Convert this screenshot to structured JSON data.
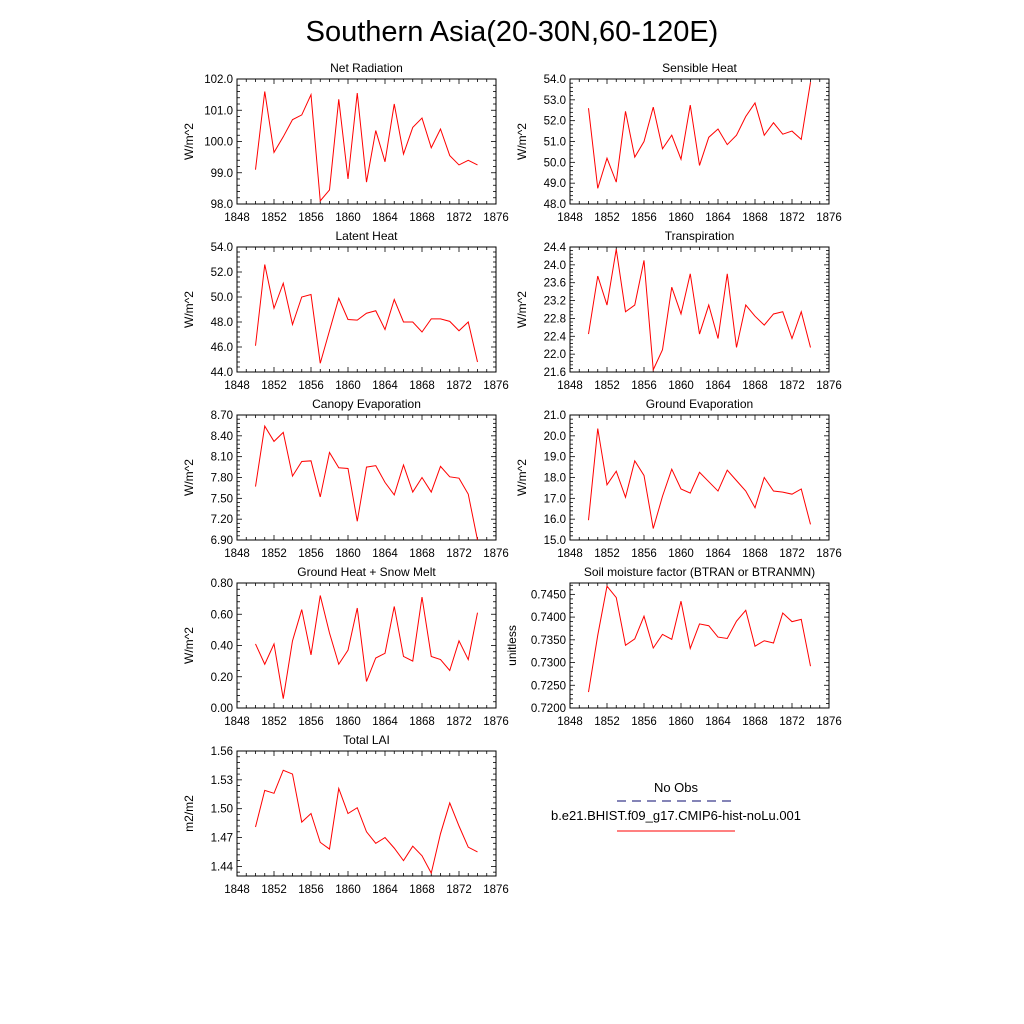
{
  "title": "Southern Asia(20-30N,60-120E)",
  "colors": {
    "model": "#ff0000",
    "obs": "#3a3a8c",
    "axis": "#000000"
  },
  "legend": {
    "obs_label": "No Obs",
    "model_label": "b.e21.BHIST.f09_g17.CMIP6-hist-noLu.001"
  },
  "chart_data": [
    {
      "type": "line",
      "title": "Net Radiation",
      "ylabel": "W/m^2",
      "xlim": [
        1848,
        1876
      ],
      "xticks": [
        "1848",
        "1852",
        "1856",
        "1860",
        "1864",
        "1868",
        "1872",
        "1876"
      ],
      "ylim": [
        98.0,
        102.0
      ],
      "yticks": [
        "98.0",
        "99.0",
        "100.0",
        "101.0",
        "102.0"
      ],
      "x": [
        1850,
        1851,
        1852,
        1853,
        1854,
        1855,
        1856,
        1857,
        1858,
        1859,
        1860,
        1861,
        1862,
        1863,
        1864,
        1865,
        1866,
        1867,
        1868,
        1869,
        1870,
        1871,
        1872,
        1873,
        1874
      ],
      "series": [
        {
          "values": [
            99.1,
            101.6,
            99.65,
            100.15,
            100.7,
            100.85,
            101.5,
            98.1,
            98.45,
            101.35,
            98.8,
            101.55,
            98.7,
            100.35,
            99.35,
            101.2,
            99.6,
            100.45,
            100.75,
            99.8,
            100.4,
            99.55,
            99.25,
            99.4,
            99.25
          ]
        }
      ]
    },
    {
      "type": "line",
      "title": "Sensible Heat",
      "ylabel": "W/m^2",
      "xlim": [
        1848,
        1876
      ],
      "xticks": [
        "1848",
        "1852",
        "1856",
        "1860",
        "1864",
        "1868",
        "1872",
        "1876"
      ],
      "ylim": [
        48.0,
        54.0
      ],
      "yticks": [
        "48.0",
        "49.0",
        "50.0",
        "51.0",
        "52.0",
        "53.0",
        "54.0"
      ],
      "x": [
        1850,
        1851,
        1852,
        1853,
        1854,
        1855,
        1856,
        1857,
        1858,
        1859,
        1860,
        1861,
        1862,
        1863,
        1864,
        1865,
        1866,
        1867,
        1868,
        1869,
        1870,
        1871,
        1872,
        1873,
        1874
      ],
      "series": [
        {
          "values": [
            52.6,
            48.75,
            50.2,
            49.05,
            52.45,
            50.25,
            51.0,
            52.65,
            50.65,
            51.3,
            50.15,
            52.75,
            49.85,
            51.2,
            51.6,
            50.85,
            51.3,
            52.2,
            52.85,
            51.3,
            51.9,
            51.35,
            51.5,
            51.1,
            53.85
          ]
        }
      ]
    },
    {
      "type": "line",
      "title": "Latent Heat",
      "ylabel": "W/m^2",
      "xlim": [
        1848,
        1876
      ],
      "xticks": [
        "1848",
        "1852",
        "1856",
        "1860",
        "1864",
        "1868",
        "1872",
        "1876"
      ],
      "ylim": [
        44.0,
        54.0
      ],
      "yticks": [
        "44.0",
        "46.0",
        "48.0",
        "50.0",
        "52.0",
        "54.0"
      ],
      "x": [
        1850,
        1851,
        1852,
        1853,
        1854,
        1855,
        1856,
        1857,
        1858,
        1859,
        1860,
        1861,
        1862,
        1863,
        1864,
        1865,
        1866,
        1867,
        1868,
        1869,
        1870,
        1871,
        1872,
        1873,
        1874
      ],
      "series": [
        {
          "values": [
            46.1,
            52.6,
            49.1,
            51.1,
            47.8,
            50.0,
            50.2,
            44.7,
            47.3,
            49.9,
            48.2,
            48.15,
            48.7,
            48.9,
            47.4,
            49.8,
            48.0,
            48.0,
            47.2,
            48.25,
            48.25,
            48.05,
            47.3,
            48.0,
            44.8
          ]
        }
      ]
    },
    {
      "type": "line",
      "title": "Transpiration",
      "ylabel": "W/m^2",
      "xlim": [
        1848,
        1876
      ],
      "xticks": [
        "1848",
        "1852",
        "1856",
        "1860",
        "1864",
        "1868",
        "1872",
        "1876"
      ],
      "ylim": [
        21.6,
        24.4
      ],
      "yticks": [
        "21.6",
        "22.0",
        "22.4",
        "22.8",
        "23.2",
        "23.6",
        "24.0",
        "24.4"
      ],
      "x": [
        1850,
        1851,
        1852,
        1853,
        1854,
        1855,
        1856,
        1857,
        1858,
        1859,
        1860,
        1861,
        1862,
        1863,
        1864,
        1865,
        1866,
        1867,
        1868,
        1869,
        1870,
        1871,
        1872,
        1873,
        1874
      ],
      "series": [
        {
          "values": [
            22.45,
            23.75,
            23.1,
            24.35,
            22.95,
            23.1,
            24.1,
            21.65,
            22.1,
            23.5,
            22.9,
            23.8,
            22.45,
            23.1,
            22.35,
            23.8,
            22.15,
            23.1,
            22.85,
            22.65,
            22.9,
            22.95,
            22.35,
            22.95,
            22.15
          ]
        }
      ]
    },
    {
      "type": "line",
      "title": "Canopy Evaporation",
      "ylabel": "W/m^2",
      "xlim": [
        1848,
        1876
      ],
      "xticks": [
        "1848",
        "1852",
        "1856",
        "1860",
        "1864",
        "1868",
        "1872",
        "1876"
      ],
      "ylim": [
        6.9,
        8.7
      ],
      "yticks": [
        "6.90",
        "7.20",
        "7.50",
        "7.80",
        "8.10",
        "8.40",
        "8.70"
      ],
      "x": [
        1850,
        1851,
        1852,
        1853,
        1854,
        1855,
        1856,
        1857,
        1858,
        1859,
        1860,
        1861,
        1862,
        1863,
        1864,
        1865,
        1866,
        1867,
        1868,
        1869,
        1870,
        1871,
        1872,
        1873,
        1874
      ],
      "series": [
        {
          "values": [
            7.67,
            8.54,
            8.32,
            8.45,
            7.82,
            8.03,
            8.04,
            7.52,
            8.16,
            7.94,
            7.93,
            7.17,
            7.95,
            7.97,
            7.73,
            7.55,
            7.98,
            7.59,
            7.8,
            7.59,
            7.96,
            7.81,
            7.79,
            7.56,
            6.9
          ]
        }
      ]
    },
    {
      "type": "line",
      "title": "Ground Evaporation",
      "ylabel": "W/m^2",
      "xlim": [
        1848,
        1876
      ],
      "xticks": [
        "1848",
        "1852",
        "1856",
        "1860",
        "1864",
        "1868",
        "1872",
        "1876"
      ],
      "ylim": [
        15.0,
        21.0
      ],
      "yticks": [
        "15.0",
        "16.0",
        "17.0",
        "18.0",
        "19.0",
        "20.0",
        "21.0"
      ],
      "x": [
        1850,
        1851,
        1852,
        1853,
        1854,
        1855,
        1856,
        1857,
        1858,
        1859,
        1860,
        1861,
        1862,
        1863,
        1864,
        1865,
        1866,
        1867,
        1868,
        1869,
        1870,
        1871,
        1872,
        1873,
        1874
      ],
      "series": [
        {
          "values": [
            15.95,
            20.35,
            17.65,
            18.3,
            17.05,
            18.8,
            18.1,
            15.55,
            17.1,
            18.4,
            17.45,
            17.25,
            18.25,
            17.8,
            17.35,
            18.35,
            17.85,
            17.35,
            16.55,
            18.0,
            17.35,
            17.3,
            17.2,
            17.45,
            15.75
          ]
        }
      ]
    },
    {
      "type": "line",
      "title": "Ground Heat + Snow Melt",
      "ylabel": "W/m^2",
      "xlim": [
        1848,
        1876
      ],
      "xticks": [
        "1848",
        "1852",
        "1856",
        "1860",
        "1864",
        "1868",
        "1872",
        "1876"
      ],
      "ylim": [
        0.0,
        0.8
      ],
      "yticks": [
        "0.00",
        "0.20",
        "0.40",
        "0.60",
        "0.80"
      ],
      "x": [
        1850,
        1851,
        1852,
        1853,
        1854,
        1855,
        1856,
        1857,
        1858,
        1859,
        1860,
        1861,
        1862,
        1863,
        1864,
        1865,
        1866,
        1867,
        1868,
        1869,
        1870,
        1871,
        1872,
        1873,
        1874
      ],
      "series": [
        {
          "values": [
            0.41,
            0.28,
            0.41,
            0.06,
            0.43,
            0.63,
            0.34,
            0.72,
            0.48,
            0.28,
            0.37,
            0.64,
            0.17,
            0.32,
            0.35,
            0.65,
            0.33,
            0.3,
            0.71,
            0.33,
            0.31,
            0.24,
            0.43,
            0.31,
            0.61
          ]
        }
      ]
    },
    {
      "type": "line",
      "title": "Soil moisture factor (BTRAN or BTRANMN)",
      "ylabel": "unitless",
      "xlim": [
        1848,
        1876
      ],
      "xticks": [
        "1848",
        "1852",
        "1856",
        "1860",
        "1864",
        "1868",
        "1872",
        "1876"
      ],
      "ylim": [
        0.72,
        0.7475
      ],
      "yticks": [
        "0.7200",
        "0.7250",
        "0.7300",
        "0.7350",
        "0.7400",
        "0.7450"
      ],
      "x": [
        1850,
        1851,
        1852,
        1853,
        1854,
        1855,
        1856,
        1857,
        1858,
        1859,
        1860,
        1861,
        1862,
        1863,
        1864,
        1865,
        1866,
        1867,
        1868,
        1869,
        1870,
        1871,
        1872,
        1873,
        1874
      ],
      "series": [
        {
          "values": [
            0.7235,
            0.736,
            0.7468,
            0.7443,
            0.7338,
            0.7352,
            0.7402,
            0.7332,
            0.7362,
            0.7351,
            0.7435,
            0.7331,
            0.7385,
            0.7381,
            0.7356,
            0.7353,
            0.7391,
            0.7415,
            0.7336,
            0.7348,
            0.7343,
            0.7409,
            0.739,
            0.7395,
            0.7292
          ]
        }
      ]
    },
    {
      "type": "line",
      "title": "Total LAI",
      "ylabel": "m2/m2",
      "xlim": [
        1848,
        1876
      ],
      "xticks": [
        "1848",
        "1852",
        "1856",
        "1860",
        "1864",
        "1868",
        "1872",
        "1876"
      ],
      "ylim": [
        1.43,
        1.56
      ],
      "yticks": [
        "1.44",
        "1.47",
        "1.50",
        "1.53",
        "1.56"
      ],
      "x": [
        1850,
        1851,
        1852,
        1853,
        1854,
        1855,
        1856,
        1857,
        1858,
        1859,
        1860,
        1861,
        1862,
        1863,
        1864,
        1865,
        1866,
        1867,
        1868,
        1869,
        1870,
        1871,
        1872,
        1873,
        1874
      ],
      "series": [
        {
          "values": [
            1.481,
            1.519,
            1.516,
            1.54,
            1.536,
            1.486,
            1.495,
            1.465,
            1.458,
            1.521,
            1.495,
            1.501,
            1.476,
            1.464,
            1.47,
            1.459,
            1.446,
            1.461,
            1.451,
            1.433,
            1.474,
            1.506,
            1.482,
            1.46,
            1.455
          ]
        }
      ]
    }
  ]
}
